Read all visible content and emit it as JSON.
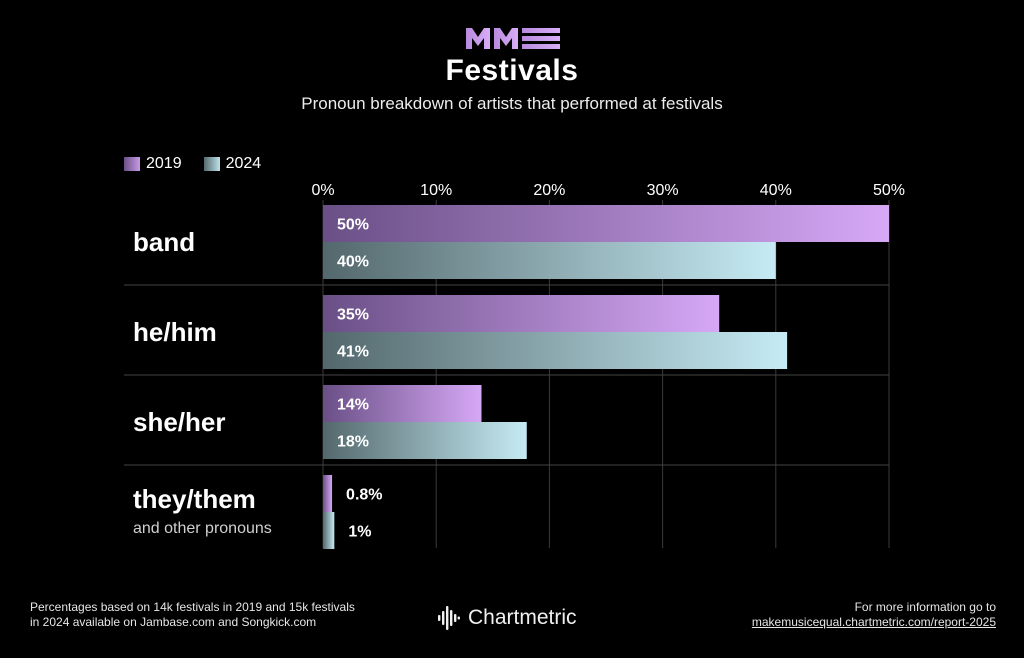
{
  "logo_text": "MME",
  "title": "Festivals",
  "subtitle": "Pronoun breakdown of artists that performed at festivals",
  "legend": [
    {
      "label": "2019",
      "color": "#c89be6"
    },
    {
      "label": "2024",
      "color": "#bfe3ec"
    }
  ],
  "chart_data": {
    "type": "bar",
    "orientation": "horizontal",
    "title": "Festivals",
    "subtitle": "Pronoun breakdown of artists that performed at festivals",
    "categories": [
      "band",
      "he/him",
      "she/her",
      "they/them"
    ],
    "category_sublabels": [
      "",
      "",
      "",
      "and other pronouns"
    ],
    "series": [
      {
        "name": "2019",
        "values": [
          50,
          35,
          14,
          0.8
        ],
        "labels": [
          "50%",
          "35%",
          "14%",
          "0.8%"
        ],
        "color_start": "#6a4f86",
        "color_end": "#d6a8f6"
      },
      {
        "name": "2024",
        "values": [
          40,
          41,
          18,
          1
        ],
        "labels": [
          "40%",
          "41%",
          "18%",
          "1%"
        ],
        "color_start": "#53686c",
        "color_end": "#c6ebf4"
      }
    ],
    "x_ticks": [
      "0%",
      "10%",
      "20%",
      "30%",
      "40%",
      "50%"
    ],
    "xlim": [
      0,
      50
    ],
    "grid": true,
    "legend_position": "top-left"
  },
  "footer": {
    "note_line1": "Percentages based on 14k festivals in 2019 and 15k festivals",
    "note_line2": "in 2024 available on Jambase.com and Songkick.com",
    "brand": "Chartmetric",
    "more_line1": "For more information go to",
    "more_url": "makemusicequal.chartmetric.com/report-2025"
  }
}
